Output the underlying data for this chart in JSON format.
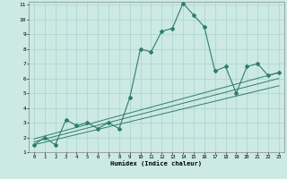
{
  "title": "",
  "xlabel": "Humidex (Indice chaleur)",
  "bg_color": "#cce9e4",
  "grid_color": "#aad4cc",
  "line_color": "#2e7d6e",
  "xlim": [
    -0.5,
    23.5
  ],
  "ylim": [
    1,
    11.2
  ],
  "xticks": [
    0,
    1,
    2,
    3,
    4,
    5,
    6,
    7,
    8,
    9,
    10,
    11,
    12,
    13,
    14,
    15,
    16,
    17,
    18,
    19,
    20,
    21,
    22,
    23
  ],
  "yticks": [
    1,
    2,
    3,
    4,
    5,
    6,
    7,
    8,
    9,
    10,
    11
  ],
  "main_x": [
    0,
    1,
    2,
    3,
    4,
    5,
    6,
    7,
    8,
    9,
    10,
    11,
    12,
    13,
    14,
    15,
    16,
    17,
    18,
    19,
    20,
    21,
    22,
    23
  ],
  "main_y": [
    1.5,
    2.0,
    1.5,
    3.2,
    2.8,
    3.0,
    2.6,
    3.0,
    2.6,
    4.7,
    8.0,
    7.8,
    9.2,
    9.4,
    11.1,
    10.3,
    9.5,
    6.5,
    6.8,
    5.0,
    6.8,
    7.0,
    6.2,
    6.4
  ],
  "line1_x": [
    0,
    23
  ],
  "line1_y": [
    1.5,
    5.5
  ],
  "line2_x": [
    0,
    23
  ],
  "line2_y": [
    1.7,
    6.0
  ],
  "line3_x": [
    0,
    23
  ],
  "line3_y": [
    1.9,
    6.4
  ]
}
